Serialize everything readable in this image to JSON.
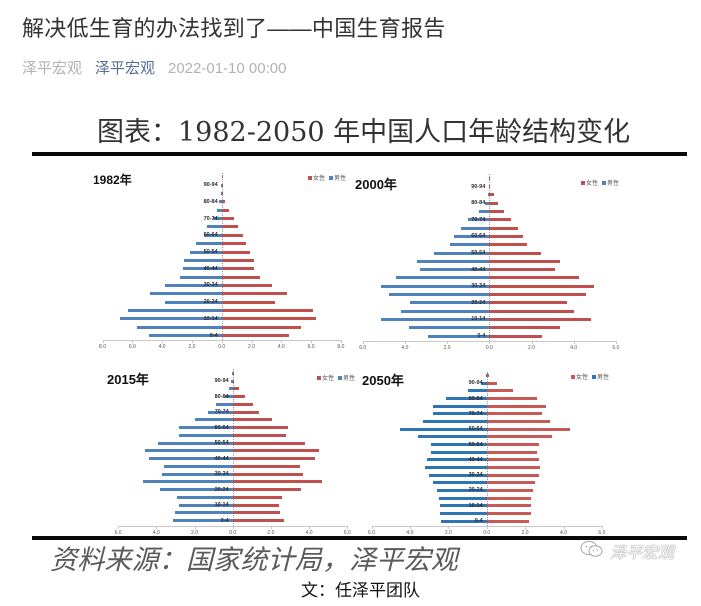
{
  "article": {
    "title": "解决低生育的办法找到了——中国生育报告",
    "account_name": "泽平宏观",
    "account_link": "泽平宏观",
    "date": "2022-01-10 00:00"
  },
  "figure": {
    "title": "图表：1982-2050 年中国人口年龄结构变化",
    "source": "资料来源：国家统计局，泽平宏观",
    "watermark": "泽平宏观",
    "watermark_icon": "wechat-icon"
  },
  "credit": "文：任泽平团队",
  "chart_data": [
    {
      "type": "bar",
      "orientation": "horizontal",
      "subtype": "population-pyramid",
      "title": "1982年",
      "xlabel": "",
      "ylabel": "",
      "xlim": [
        -8,
        8
      ],
      "xticks": [
        "8.0",
        "6.0",
        "4.0",
        "2.0",
        "0.0",
        "2.0",
        "4.0",
        "6.0",
        "8.0"
      ],
      "legend_position": "top-right",
      "categories": [
        "0-4",
        "5-9",
        "10-14",
        "15-19",
        "20-24",
        "25-29",
        "30-34",
        "35-39",
        "40-44",
        "45-49",
        "50-54",
        "55-59",
        "60-64",
        "65-69",
        "70-74",
        "75-79",
        "80-84",
        "85-89",
        "90-94",
        "95+"
      ],
      "shown_labels": [
        "0-4",
        "10-14",
        "20-24",
        "30-34",
        "40-44",
        "50-54",
        "60-64",
        "70-74",
        "80-84",
        "90-94"
      ],
      "series": [
        {
          "name": "女性",
          "side": "right",
          "color": "#c0504d",
          "values": [
            4.5,
            5.3,
            6.3,
            6.1,
            3.6,
            4.4,
            3.4,
            2.6,
            2.2,
            2.2,
            1.9,
            1.6,
            1.4,
            1.1,
            0.8,
            0.5,
            0.2,
            0.05,
            0.02,
            0.01
          ]
        },
        {
          "name": "男性",
          "side": "left",
          "color": "#4f81bd",
          "values": [
            4.9,
            5.7,
            6.8,
            6.3,
            3.8,
            4.8,
            3.8,
            2.8,
            2.6,
            2.5,
            2.1,
            1.7,
            1.2,
            1.0,
            0.6,
            0.3,
            0.15,
            0.05,
            0.02,
            0.01
          ]
        }
      ]
    },
    {
      "type": "bar",
      "orientation": "horizontal",
      "subtype": "population-pyramid",
      "title": "2000年",
      "xlabel": "",
      "ylabel": "",
      "xlim": [
        -6,
        6
      ],
      "xticks": [
        "6.0",
        "4.0",
        "2.0",
        "0.0",
        "2.0",
        "4.0",
        "6.0"
      ],
      "legend_position": "top-right",
      "categories": [
        "0-4",
        "5-9",
        "10-14",
        "15-19",
        "20-24",
        "25-29",
        "30-34",
        "35-39",
        "40-44",
        "45-49",
        "50-54",
        "55-59",
        "60-64",
        "65-69",
        "70-74",
        "75-79",
        "80-84",
        "85-89",
        "90-94",
        "95+"
      ],
      "shown_labels": [
        "0-4",
        "10-14",
        "20-24",
        "30-34",
        "40-44",
        "50-54",
        "60-64",
        "70-74",
        "80-84",
        "90-94"
      ],
      "series": [
        {
          "name": "女性",
          "side": "right",
          "color": "#c0504d",
          "values": [
            2.5,
            3.35,
            4.8,
            4.0,
            3.7,
            4.6,
            4.95,
            4.25,
            3.1,
            3.35,
            2.45,
            1.8,
            1.6,
            1.35,
            1.05,
            0.7,
            0.4,
            0.2,
            0.03,
            0.01
          ]
        },
        {
          "name": "男性",
          "side": "left",
          "color": "#4f81bd",
          "values": [
            2.9,
            3.8,
            5.15,
            4.2,
            3.75,
            4.75,
            5.15,
            4.4,
            3.3,
            3.45,
            2.6,
            1.85,
            1.65,
            1.35,
            1.0,
            0.5,
            0.2,
            0.05,
            0.02,
            0.01
          ]
        }
      ]
    },
    {
      "type": "bar",
      "orientation": "horizontal",
      "subtype": "population-pyramid",
      "title": "2015年",
      "xlabel": "",
      "ylabel": "",
      "xlim": [
        -6,
        6
      ],
      "xticks": [
        "6.0",
        "4.0",
        "2.0",
        "0.0",
        "2.0",
        "4.0",
        "6.0"
      ],
      "legend_position": "top-right",
      "categories": [
        "0-4",
        "5-9",
        "10-14",
        "15-19",
        "20-24",
        "25-29",
        "30-34",
        "35-39",
        "40-44",
        "45-49",
        "50-54",
        "55-59",
        "60-64",
        "65-69",
        "70-74",
        "75-79",
        "80-84",
        "85-89",
        "90-94",
        "95+"
      ],
      "shown_labels": [
        "0-4",
        "10-14",
        "20-24",
        "30-34",
        "40-44",
        "50-54",
        "60-64",
        "70-74",
        "80-84",
        "90-94"
      ],
      "series": [
        {
          "name": "女性",
          "side": "right",
          "color": "#c0504d",
          "values": [
            2.7,
            2.5,
            2.4,
            2.6,
            3.6,
            4.7,
            3.7,
            3.5,
            4.3,
            4.5,
            3.8,
            2.8,
            2.9,
            2.05,
            1.4,
            1.05,
            0.65,
            0.35,
            0.05,
            0.02
          ]
        },
        {
          "name": "男性",
          "side": "left",
          "color": "#4f81bd",
          "values": [
            3.1,
            3.0,
            2.8,
            2.9,
            3.8,
            4.7,
            3.7,
            3.6,
            4.4,
            4.6,
            3.9,
            2.8,
            2.8,
            1.95,
            1.3,
            0.9,
            0.4,
            0.2,
            0.1,
            0.02
          ]
        }
      ]
    },
    {
      "type": "bar",
      "orientation": "horizontal",
      "subtype": "population-pyramid",
      "title": "2050年",
      "xlabel": "",
      "ylabel": "",
      "xlim": [
        -6,
        6
      ],
      "xticks": [
        "6.0",
        "4.0",
        "2.0",
        "0.0",
        "2.0",
        "4.0",
        "6.0"
      ],
      "legend_position": "top-right",
      "categories": [
        "0-4",
        "5-9",
        "10-14",
        "15-19",
        "20-24",
        "25-29",
        "30-34",
        "35-39",
        "40-44",
        "45-49",
        "50-54",
        "55-59",
        "60-64",
        "65-69",
        "70-74",
        "75-79",
        "80-84",
        "85-89",
        "90-94",
        "95+"
      ],
      "shown_labels": [
        "0-4",
        "10-14",
        "20-24",
        "30-34",
        "40-44",
        "50-54",
        "60-64",
        "70-74",
        "80-84",
        "90-94"
      ],
      "series": [
        {
          "name": "女性",
          "side": "right",
          "color": "#c55a57",
          "values": [
            2.2,
            2.3,
            2.3,
            2.3,
            2.4,
            2.5,
            2.7,
            2.8,
            2.7,
            2.6,
            2.7,
            3.4,
            4.35,
            3.3,
            2.9,
            3.1,
            2.6,
            1.35,
            0.55,
            0.1
          ]
        },
        {
          "name": "男性",
          "side": "left",
          "color": "#2e75b6",
          "values": [
            2.4,
            2.45,
            2.45,
            2.5,
            2.6,
            2.8,
            3.0,
            3.2,
            3.1,
            2.9,
            2.9,
            3.6,
            4.5,
            3.3,
            2.8,
            2.8,
            2.1,
            1.0,
            0.3,
            0.05
          ]
        }
      ]
    }
  ]
}
